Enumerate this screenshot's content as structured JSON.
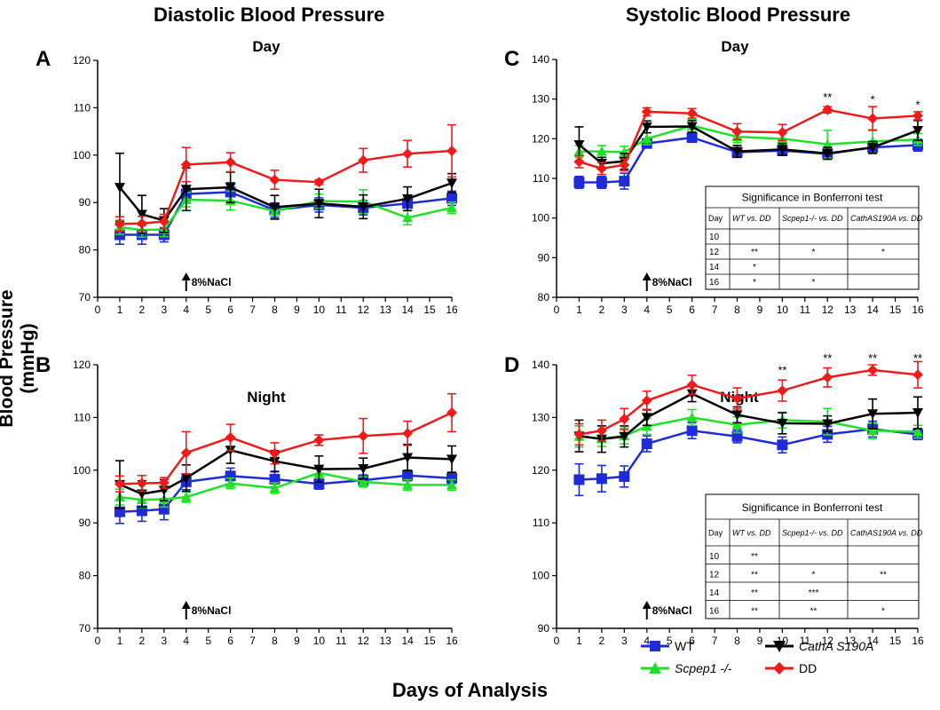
{
  "figure": {
    "left_title": "Diastolic Blood Pressure",
    "right_title": "Systolic Blood Pressure",
    "ylabel": "Blood Pressure (mmHg)",
    "xlabel": "Days of Analysis"
  },
  "legend": [
    {
      "name": "WT",
      "color": "#1f2cd6",
      "marker": "square"
    },
    {
      "name": "Scpep1 -/-",
      "color": "#22e02a",
      "marker": "triangle-up"
    },
    {
      "name": "CathA S190A",
      "color": "#000000",
      "marker": "triangle-down"
    },
    {
      "name": "DD",
      "color": "#ee1b1b",
      "marker": "diamond"
    }
  ],
  "chart_data": [
    {
      "id": "A",
      "panel_label": "A",
      "subtitle": "Day",
      "type": "line",
      "xlim": [
        0,
        16
      ],
      "ylim": [
        70,
        120
      ],
      "yticks": [
        70,
        80,
        90,
        100,
        110,
        120
      ],
      "annotation": "8%NaCl",
      "series": [
        {
          "key": "wt",
          "x": [
            1,
            2,
            3,
            4,
            6,
            8,
            10,
            12,
            14,
            16
          ],
          "y": [
            83.2,
            83.2,
            83.2,
            91.8,
            92.2,
            88.4,
            89.5,
            88.9,
            89.8,
            90.9
          ],
          "err": [
            2,
            2,
            1.5,
            1.5,
            2,
            1.5,
            1.5,
            1.5,
            1.5,
            1.5
          ]
        },
        {
          "key": "scpep",
          "x": [
            1,
            2,
            3,
            4,
            6,
            8,
            10,
            12,
            14,
            16
          ],
          "y": [
            84.8,
            84.2,
            84.3,
            90.6,
            90.4,
            88.2,
            90.3,
            90.2,
            86.8,
            88.9
          ],
          "err": [
            1.5,
            1.5,
            1.5,
            1.5,
            2,
            1.5,
            1.5,
            2.5,
            1.5,
            1.2
          ]
        },
        {
          "key": "catha",
          "x": [
            1,
            2,
            3,
            4,
            6,
            8,
            10,
            12,
            14,
            16
          ],
          "y": [
            93.2,
            87.5,
            86.2,
            92.8,
            93.2,
            89,
            89.8,
            89.1,
            90.8,
            94.1
          ],
          "err": [
            7.2,
            4,
            2.5,
            4.5,
            3.2,
            2.5,
            3,
            2.5,
            2.5,
            2
          ]
        },
        {
          "key": "dd",
          "x": [
            1,
            2,
            3,
            4,
            6,
            8,
            10,
            12,
            14,
            16
          ],
          "y": [
            85.5,
            85.6,
            86,
            98,
            98.5,
            94.8,
            94.3,
            98.9,
            100.3,
            100.9
          ],
          "err": [
            1.5,
            1.5,
            1.5,
            3.6,
            2,
            2,
            0.5,
            2.5,
            2.8,
            5.5
          ]
        }
      ],
      "stars": []
    },
    {
      "id": "B",
      "panel_label": "B",
      "subtitle": "Night",
      "type": "line",
      "xlim": [
        0,
        16
      ],
      "ylim": [
        70,
        120
      ],
      "yticks": [
        70,
        80,
        90,
        100,
        110,
        120
      ],
      "annotation": "8%NaCl",
      "series": [
        {
          "key": "wt",
          "x": [
            1,
            2,
            3,
            4,
            6,
            8,
            10,
            12,
            14,
            16
          ],
          "y": [
            92.1,
            92.3,
            92.6,
            97.8,
            98.9,
            98.3,
            97.4,
            98.1,
            99,
            98.5
          ],
          "err": [
            2.2,
            2,
            2,
            1.5,
            1.5,
            1.5,
            1,
            1,
            1,
            1
          ]
        },
        {
          "key": "scpep",
          "x": [
            1,
            2,
            3,
            4,
            6,
            8,
            10,
            12,
            14,
            16
          ],
          "y": [
            94.9,
            94.4,
            94.5,
            94.9,
            97.5,
            96.6,
            99.5,
            97.8,
            97.2,
            97.2
          ],
          "err": [
            1.5,
            1.5,
            1.5,
            1,
            1,
            1,
            1,
            1,
            1,
            1
          ]
        },
        {
          "key": "catha",
          "x": [
            1,
            2,
            3,
            4,
            6,
            8,
            10,
            12,
            14,
            16
          ],
          "y": [
            97.3,
            95.5,
            96.2,
            98.5,
            103.8,
            101.7,
            100.2,
            100.3,
            102.4,
            102.1
          ],
          "err": [
            4.5,
            2.5,
            2,
            2.5,
            2.5,
            2,
            2.5,
            2,
            2.5,
            2.5
          ]
        },
        {
          "key": "dd",
          "x": [
            1,
            2,
            3,
            4,
            6,
            8,
            10,
            12,
            14,
            16
          ],
          "y": [
            97.4,
            97.5,
            97.6,
            103.3,
            106.2,
            103.2,
            105.7,
            106.5,
            107,
            110.9
          ],
          "err": [
            1.5,
            1.5,
            1,
            4,
            2.5,
            2,
            1,
            3.3,
            2.3,
            3.6
          ]
        }
      ],
      "stars": []
    },
    {
      "id": "C",
      "panel_label": "C",
      "subtitle": "Day",
      "type": "line",
      "xlim": [
        0,
        16
      ],
      "ylim": [
        80,
        140
      ],
      "yticks": [
        80,
        90,
        100,
        110,
        120,
        130,
        140
      ],
      "annotation": "8%NaCl",
      "series": [
        {
          "key": "wt",
          "x": [
            1,
            2,
            3,
            4,
            6,
            8,
            10,
            12,
            14,
            16
          ],
          "y": [
            109,
            109,
            109.3,
            118.8,
            120.3,
            116.6,
            117,
            116.2,
            117.8,
            118.4
          ],
          "err": [
            1.5,
            1.5,
            2,
            1,
            1,
            1,
            1,
            1,
            1,
            1.5
          ]
        },
        {
          "key": "scpep",
          "x": [
            1,
            2,
            3,
            4,
            6,
            8,
            10,
            12,
            14,
            16
          ],
          "y": [
            116.8,
            116.8,
            116.6,
            120,
            123.3,
            120.5,
            120,
            118.6,
            119.3,
            119.8
          ],
          "err": [
            1.5,
            1.5,
            1.5,
            1.5,
            1.5,
            1.5,
            1.5,
            3.5,
            3,
            1.5
          ]
        },
        {
          "key": "catha",
          "x": [
            1,
            2,
            3,
            4,
            6,
            8,
            10,
            12,
            14,
            16
          ],
          "y": [
            118.5,
            113.8,
            114.3,
            123,
            123.1,
            116.8,
            117.3,
            116.3,
            117.8,
            122.1
          ],
          "err": [
            4.5,
            1.5,
            2,
            1.5,
            1.5,
            1.5,
            1.5,
            1.5,
            1.5,
            2.5
          ]
        },
        {
          "key": "dd",
          "x": [
            1,
            2,
            3,
            4,
            6,
            8,
            10,
            12,
            14,
            16
          ],
          "y": [
            114.2,
            112.5,
            113.4,
            126.8,
            126.4,
            121.8,
            121.6,
            127.3,
            125.1,
            125.8
          ],
          "err": [
            1.5,
            1.5,
            1.5,
            1,
            1.2,
            2,
            2,
            0.8,
            3,
            1
          ]
        }
      ],
      "stars": [
        {
          "x": 12,
          "y": 129.5,
          "text": "**"
        },
        {
          "x": 14,
          "y": 128.9,
          "text": "*"
        },
        {
          "x": 16,
          "y": 127.6,
          "text": "*"
        }
      ],
      "table": {
        "title": "Significance in Bonferroni test",
        "headers": [
          "Day",
          "WT vs. DD",
          "Scpep1-/- vs. DD",
          "CathAS190A vs. DD"
        ],
        "rows": [
          [
            "10",
            "",
            "",
            ""
          ],
          [
            "12",
            "**",
            "*",
            "*"
          ],
          [
            "14",
            "*",
            "",
            ""
          ],
          [
            "16",
            "*",
            "*",
            ""
          ]
        ]
      }
    },
    {
      "id": "D",
      "panel_label": "D",
      "subtitle": "Night",
      "type": "line",
      "xlim": [
        0,
        16
      ],
      "ylim": [
        90,
        140
      ],
      "yticks": [
        90,
        100,
        110,
        120,
        130,
        140
      ],
      "annotation": "8%NaCl",
      "series": [
        {
          "key": "wt",
          "x": [
            1,
            2,
            3,
            4,
            6,
            8,
            10,
            12,
            14,
            16
          ],
          "y": [
            118.2,
            118.4,
            118.8,
            125,
            127.5,
            126.4,
            124.8,
            126.8,
            127.8,
            126.8
          ],
          "err": [
            3,
            2.5,
            2,
            1.5,
            1.5,
            1.2,
            1.5,
            1.5,
            1.5,
            1
          ]
        },
        {
          "key": "scpep",
          "x": [
            1,
            2,
            3,
            4,
            6,
            8,
            10,
            12,
            14,
            16
          ],
          "y": [
            126.4,
            126,
            126.5,
            128.3,
            130,
            128.6,
            129.5,
            129.2,
            127.5,
            127.3
          ],
          "err": [
            2,
            1.5,
            1.5,
            1.5,
            1.5,
            1.5,
            1.5,
            2.5,
            1.5,
            1.2
          ]
        },
        {
          "key": "catha",
          "x": [
            1,
            2,
            3,
            4,
            6,
            8,
            10,
            12,
            14,
            16
          ],
          "y": [
            126.5,
            125.9,
            126.4,
            130,
            134.5,
            130.5,
            128.9,
            128.8,
            130.7,
            130.9
          ],
          "err": [
            3,
            2.5,
            2,
            1.5,
            1.5,
            1.5,
            2,
            1.5,
            2.8,
            3
          ]
        },
        {
          "key": "dd",
          "x": [
            1,
            2,
            3,
            4,
            6,
            8,
            10,
            12,
            14,
            16
          ],
          "y": [
            126.8,
            127.5,
            129.7,
            133.2,
            136.2,
            133.6,
            135.1,
            137.6,
            139,
            138.1
          ],
          "err": [
            2,
            2,
            2,
            1.8,
            1.8,
            2,
            2,
            1.8,
            1,
            2.5
          ]
        }
      ],
      "stars": [
        {
          "x": 10,
          "y": 138.2,
          "text": "**"
        },
        {
          "x": 12,
          "y": 140.5,
          "text": "**"
        },
        {
          "x": 14,
          "y": 140.5,
          "text": "**"
        },
        {
          "x": 16,
          "y": 140.5,
          "text": "**"
        }
      ],
      "table": {
        "title": "Significance in Bonferroni test",
        "headers": [
          "Day",
          "WT vs. DD",
          "Scpep1-/- vs. DD",
          "CathAS190A vs. DD"
        ],
        "rows": [
          [
            "10",
            "**",
            "",
            ""
          ],
          [
            "12",
            "**",
            "*",
            "**"
          ],
          [
            "14",
            "**",
            "***",
            ""
          ],
          [
            "16",
            "**",
            "**",
            "*"
          ]
        ]
      }
    }
  ]
}
